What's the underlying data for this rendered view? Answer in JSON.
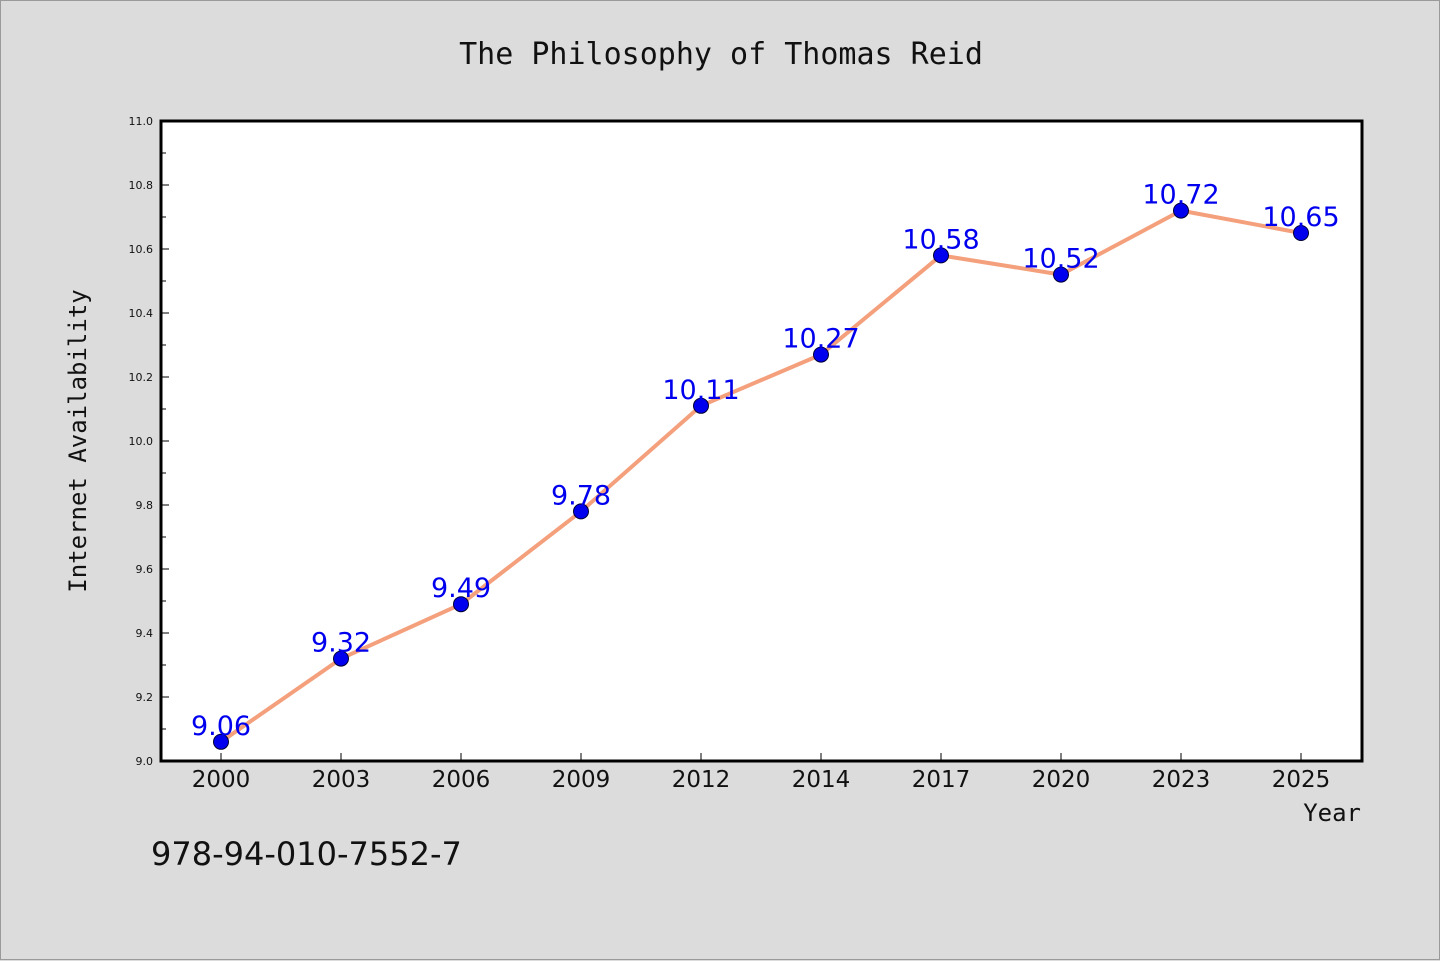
{
  "chart_data": {
    "type": "line",
    "title": "The Philosophy of Thomas Reid",
    "xlabel": "Year",
    "ylabel": "Internet Availability",
    "categories": [
      "2000",
      "2003",
      "2006",
      "2009",
      "2012",
      "2014",
      "2017",
      "2020",
      "2023",
      "2025"
    ],
    "series": [
      {
        "values": [
          9.06,
          9.32,
          9.49,
          9.78,
          10.11,
          10.27,
          10.58,
          10.52,
          10.72,
          10.65
        ],
        "line_color": "#f4a07c",
        "marker_color": "#0000ee",
        "label_color": "#0000ee"
      }
    ],
    "ylim": [
      9.0,
      11.0
    ],
    "yticks": [
      "9.0",
      "9.2",
      "9.4",
      "9.6",
      "9.8",
      "10.0",
      "10.2",
      "10.4",
      "10.6",
      "10.8",
      "11.0"
    ],
    "grid": false,
    "data_labels": true,
    "legend": false
  },
  "footnote": "978-94-010-7552-7"
}
